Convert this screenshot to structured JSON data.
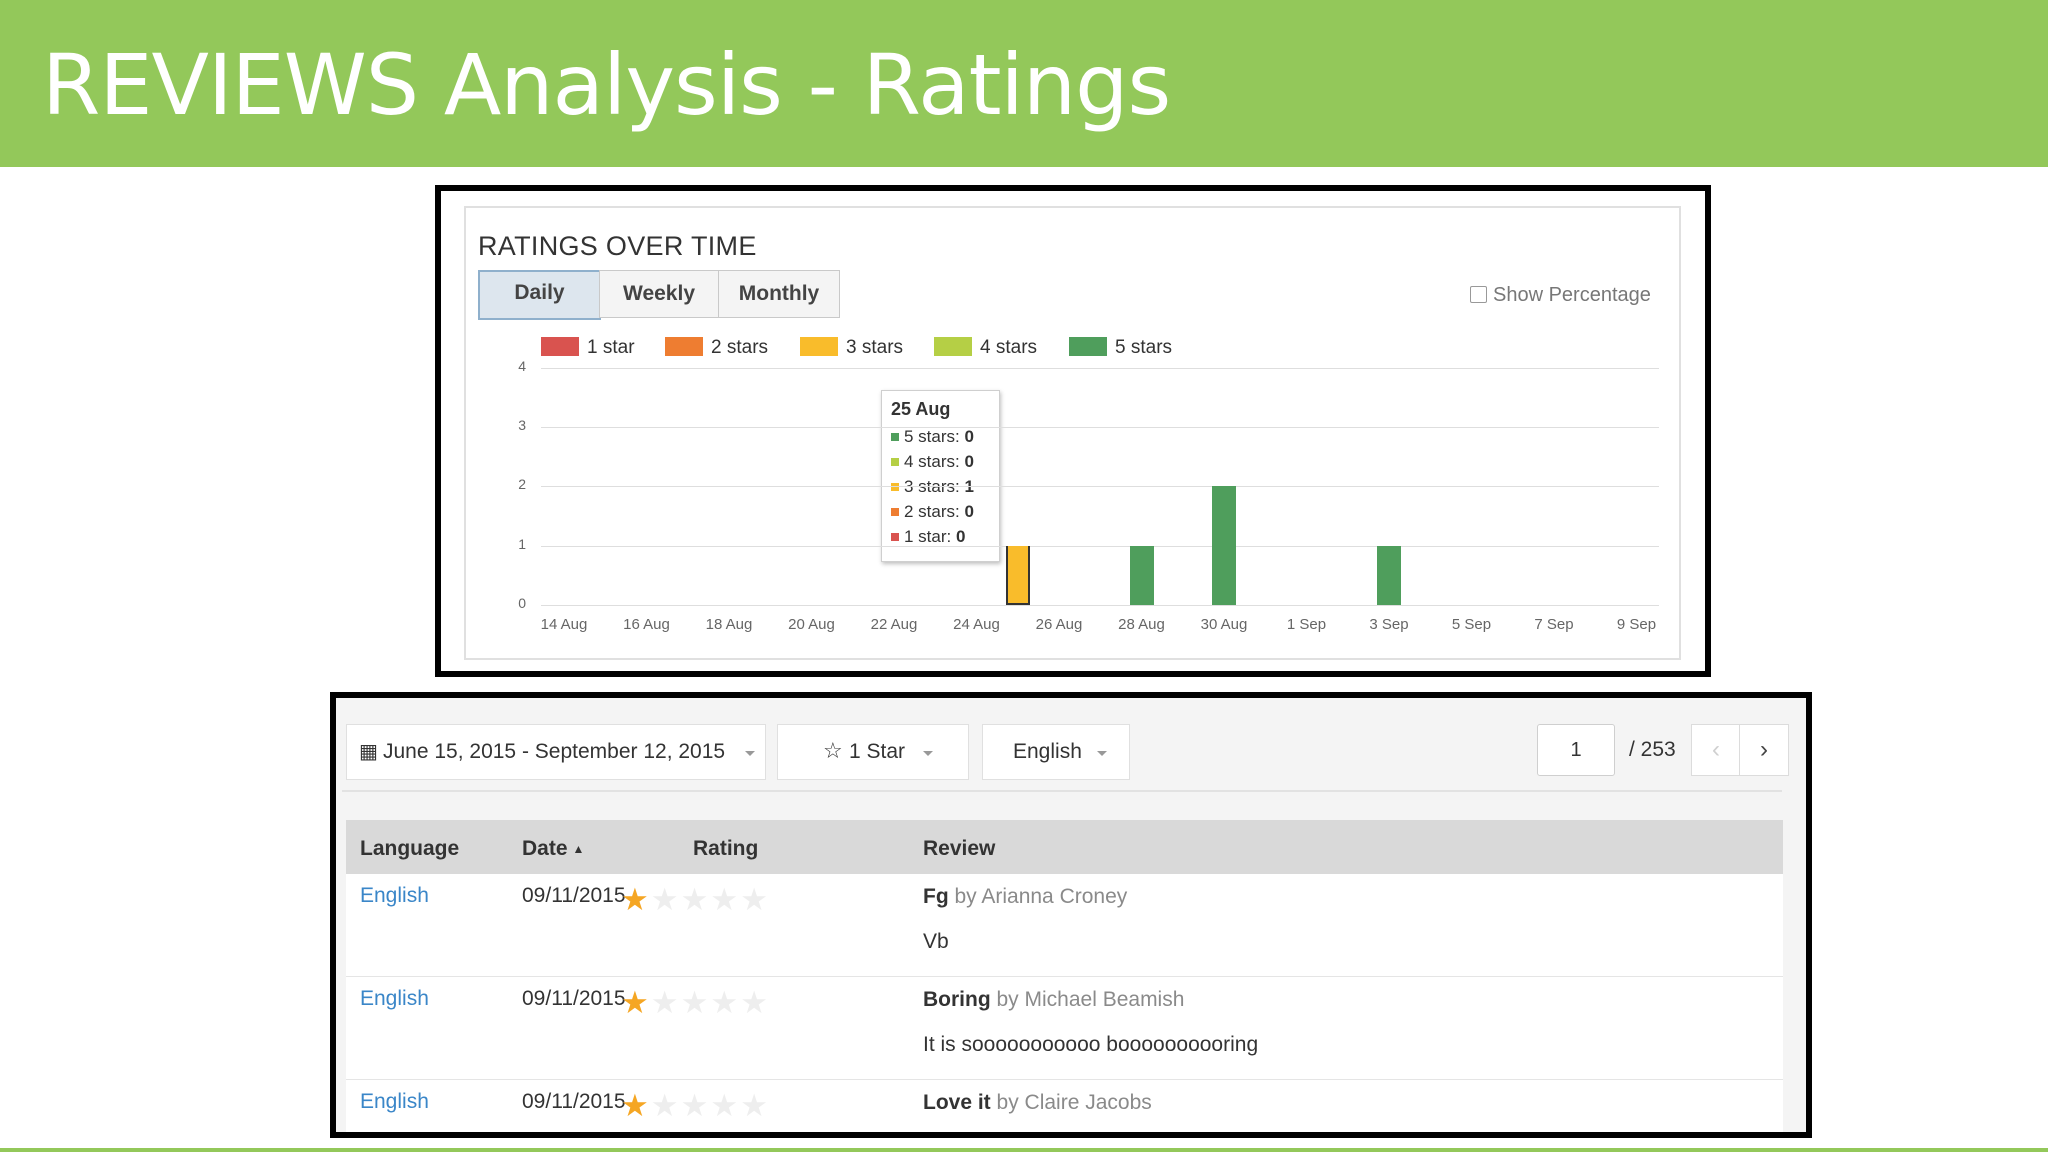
{
  "slide": {
    "title": "REVIEWS Analysis - Ratings"
  },
  "chart_panel": {
    "title": "RATINGS OVER TIME",
    "tabs": [
      "Daily",
      "Weekly",
      "Monthly"
    ],
    "active_tab": "Daily",
    "show_percentage_label": "Show Percentage",
    "show_percentage_checked": false
  },
  "chart_data": {
    "type": "bar",
    "stacked": true,
    "title": "RATINGS OVER TIME",
    "categories": [
      "14 Aug",
      "15 Aug",
      "16 Aug",
      "17 Aug",
      "18 Aug",
      "19 Aug",
      "20 Aug",
      "21 Aug",
      "22 Aug",
      "23 Aug",
      "24 Aug",
      "25 Aug",
      "26 Aug",
      "27 Aug",
      "28 Aug",
      "29 Aug",
      "30 Aug",
      "31 Aug",
      "1 Sep",
      "2 Sep",
      "3 Sep",
      "4 Sep",
      "5 Sep",
      "6 Sep",
      "7 Sep",
      "8 Sep",
      "9 Sep"
    ],
    "x_tick_labels": [
      "14 Aug",
      "16 Aug",
      "18 Aug",
      "20 Aug",
      "22 Aug",
      "24 Aug",
      "26 Aug",
      "28 Aug",
      "30 Aug",
      "1 Sep",
      "3 Sep",
      "5 Sep",
      "7 Sep",
      "9 Sep"
    ],
    "series": [
      {
        "name": "1 star",
        "color": "#d9534f",
        "values": [
          0,
          0,
          0,
          0,
          0,
          0,
          0,
          0,
          0,
          0,
          0,
          0,
          0,
          0,
          0,
          0,
          0,
          0,
          0,
          0,
          0,
          0,
          0,
          0,
          0,
          0,
          0
        ]
      },
      {
        "name": "2 stars",
        "color": "#ee7d31",
        "values": [
          0,
          0,
          0,
          0,
          0,
          0,
          0,
          0,
          0,
          0,
          0,
          0,
          0,
          0,
          0,
          0,
          0,
          0,
          0,
          0,
          0,
          0,
          0,
          0,
          0,
          0,
          0
        ]
      },
      {
        "name": "3 stars",
        "color": "#f9bc2b",
        "values": [
          0,
          0,
          0,
          0,
          0,
          0,
          0,
          0,
          0,
          0,
          0,
          1,
          0,
          0,
          0,
          0,
          0,
          0,
          0,
          0,
          0,
          0,
          0,
          0,
          0,
          0,
          0
        ]
      },
      {
        "name": "4 stars",
        "color": "#b5cf45",
        "values": [
          0,
          0,
          0,
          0,
          0,
          0,
          0,
          0,
          0,
          0,
          0,
          0,
          0,
          0,
          0,
          0,
          0,
          0,
          0,
          0,
          0,
          0,
          0,
          0,
          0,
          0,
          0
        ]
      },
      {
        "name": "5 stars",
        "color": "#4f9e5c",
        "values": [
          0,
          0,
          0,
          0,
          0,
          0,
          0,
          0,
          0,
          0,
          0,
          0,
          0,
          0,
          1,
          0,
          2,
          0,
          0,
          0,
          1,
          0,
          0,
          0,
          0,
          0,
          0
        ]
      }
    ],
    "ylim": [
      0,
      4
    ],
    "y_ticks": [
      0,
      1,
      2,
      3,
      4
    ],
    "grid": true,
    "legend_position": "top-left",
    "tooltip": {
      "title": "25 Aug",
      "rows": [
        {
          "label": "5 stars: ",
          "value": "0",
          "color": "#4f9e5c"
        },
        {
          "label": "4 stars: ",
          "value": "0",
          "color": "#b5cf45"
        },
        {
          "label": "3 stars: ",
          "value": "1",
          "color": "#f9bc2b"
        },
        {
          "label": "2 stars: ",
          "value": "0",
          "color": "#ee7d31"
        },
        {
          "label": "1 star: ",
          "value": "0",
          "color": "#d9534f"
        }
      ]
    }
  },
  "filters": {
    "date_range": "June 15, 2015 - September 12, 2015",
    "date_icon": "calendar-icon",
    "rating": "1 Star",
    "rating_icon": "star-outline-icon",
    "language": "English",
    "page": "1",
    "page_total": "/ 253",
    "prev_icon": "chevron-left-icon",
    "next_icon": "chevron-right-icon"
  },
  "table": {
    "headers": {
      "language": "Language",
      "date": "Date",
      "rating": "Rating",
      "review": "Review"
    },
    "sort_icon": "sort-up-icon",
    "rows": [
      {
        "language": "English",
        "date": "09/11/2015",
        "rating": 1,
        "title": "Fg",
        "by": "by Arianna Croney",
        "body": "Vb"
      },
      {
        "language": "English",
        "date": "09/11/2015",
        "rating": 1,
        "title": "Boring",
        "by": "by Michael Beamish",
        "body": "It is sooooooooooo boooooooooring"
      },
      {
        "language": "English",
        "date": "09/11/2015",
        "rating": 1,
        "title": "Love it",
        "by": "by Claire Jacobs",
        "body": ""
      }
    ]
  }
}
